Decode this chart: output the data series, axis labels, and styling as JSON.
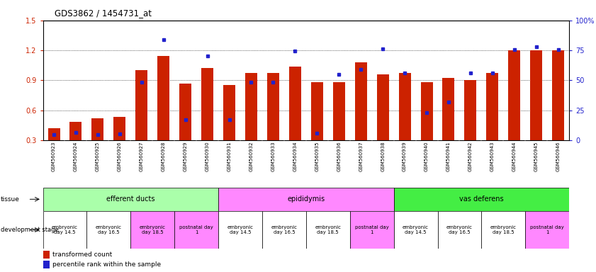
{
  "title": "GDS3862 / 1454731_at",
  "samples": [
    "GSM560923",
    "GSM560924",
    "GSM560925",
    "GSM560926",
    "GSM560927",
    "GSM560928",
    "GSM560929",
    "GSM560930",
    "GSM560931",
    "GSM560932",
    "GSM560933",
    "GSM560934",
    "GSM560935",
    "GSM560936",
    "GSM560937",
    "GSM560938",
    "GSM560939",
    "GSM560940",
    "GSM560941",
    "GSM560942",
    "GSM560943",
    "GSM560944",
    "GSM560945",
    "GSM560946"
  ],
  "red_values": [
    0.42,
    0.48,
    0.52,
    0.53,
    1.0,
    1.14,
    0.87,
    1.02,
    0.85,
    0.97,
    0.97,
    1.04,
    0.88,
    0.88,
    1.08,
    0.96,
    0.97,
    0.88,
    0.92,
    0.9,
    0.97,
    1.2,
    1.2,
    1.2
  ],
  "blue_values": [
    0.355,
    0.375,
    0.355,
    0.365,
    0.88,
    1.305,
    0.505,
    1.145,
    0.505,
    0.88,
    0.88,
    1.195,
    0.37,
    0.96,
    1.005,
    1.215,
    0.97,
    0.575,
    0.68,
    0.975,
    0.975,
    1.205,
    1.235,
    1.21
  ],
  "ylim_left": [
    0.3,
    1.5
  ],
  "ylim_right": [
    0,
    100
  ],
  "yticks_left": [
    0.3,
    0.6,
    0.9,
    1.2,
    1.5
  ],
  "yticks_right": [
    0,
    25,
    50,
    75,
    100
  ],
  "bar_color": "#CC2200",
  "marker_color": "#2222CC",
  "bg_color": "#ffffff",
  "tissue_groups": [
    {
      "label": "efferent ducts",
      "start": 0,
      "end": 7,
      "color": "#aaffaa"
    },
    {
      "label": "epididymis",
      "start": 8,
      "end": 15,
      "color": "#ff88ff"
    },
    {
      "label": "vas deferens",
      "start": 16,
      "end": 23,
      "color": "#44ee44"
    }
  ],
  "dev_stages": [
    {
      "label": "embryonic\nday 14.5",
      "start": 0,
      "end": 1,
      "color": "#ffffff"
    },
    {
      "label": "embryonic\nday 16.5",
      "start": 2,
      "end": 3,
      "color": "#ffffff"
    },
    {
      "label": "embryonic\nday 18.5",
      "start": 4,
      "end": 5,
      "color": "#ff88ff"
    },
    {
      "label": "postnatal day\n1",
      "start": 6,
      "end": 7,
      "color": "#ff88ff"
    },
    {
      "label": "embryonic\nday 14.5",
      "start": 8,
      "end": 9,
      "color": "#ffffff"
    },
    {
      "label": "embryonic\nday 16.5",
      "start": 10,
      "end": 11,
      "color": "#ffffff"
    },
    {
      "label": "embryonic\nday 18.5",
      "start": 12,
      "end": 13,
      "color": "#ffffff"
    },
    {
      "label": "postnatal day\n1",
      "start": 14,
      "end": 15,
      "color": "#ff88ff"
    },
    {
      "label": "embryonic\nday 14.5",
      "start": 16,
      "end": 17,
      "color": "#ffffff"
    },
    {
      "label": "embryonic\nday 16.5",
      "start": 18,
      "end": 19,
      "color": "#ffffff"
    },
    {
      "label": "embryonic\nday 18.5",
      "start": 20,
      "end": 21,
      "color": "#ffffff"
    },
    {
      "label": "postnatal day\n1",
      "start": 22,
      "end": 23,
      "color": "#ff88ff"
    }
  ]
}
